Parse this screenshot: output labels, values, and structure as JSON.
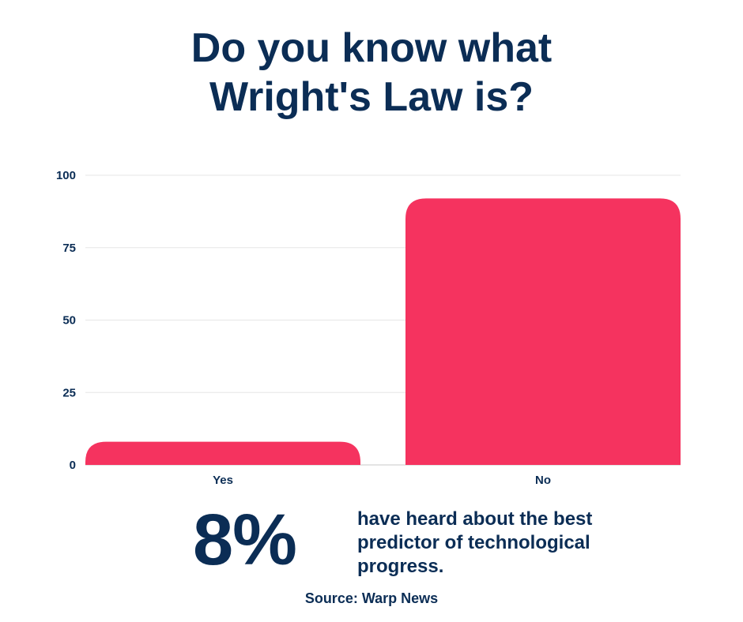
{
  "title_lines": [
    "Do you know what",
    "Wright's Law is?"
  ],
  "chart_data": {
    "type": "bar",
    "categories": [
      "Yes",
      "No"
    ],
    "values": [
      8,
      92
    ],
    "yticks": [
      0,
      25,
      50,
      75,
      100
    ],
    "ylim": [
      0,
      100
    ],
    "grid": true,
    "bar_color": "#f5335f"
  },
  "highlight": {
    "value": "8%",
    "description_lines": [
      "have heard about the best",
      "predictor of technological",
      "progress."
    ]
  },
  "source": "Source: Warp News",
  "colors": {
    "text": "#0b2d55",
    "bar": "#f5335f",
    "grid": "#e6e6e6"
  }
}
